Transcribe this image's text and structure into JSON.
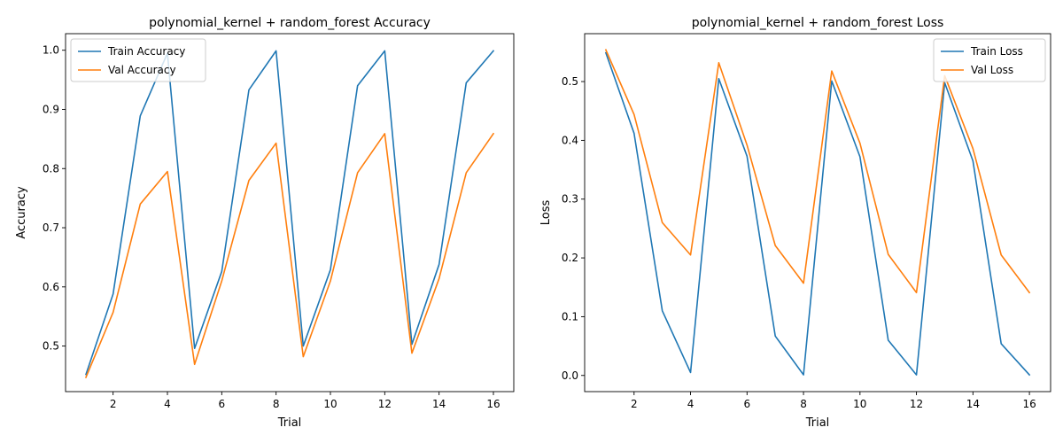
{
  "chart_data": [
    {
      "type": "line",
      "title": "polynomial_kernel + random_forest Accuracy",
      "xlabel": "Trial",
      "ylabel": "Accuracy",
      "xlim": [
        0.25,
        16.75
      ],
      "ylim": [
        0.423,
        1.028
      ],
      "xticks": [
        2,
        4,
        6,
        8,
        10,
        12,
        14,
        16
      ],
      "yticks": [
        0.5,
        0.6,
        0.7,
        0.8,
        0.9,
        1.0
      ],
      "ytick_labels": [
        "0.5",
        "0.6",
        "0.7",
        "0.8",
        "0.9",
        "1.0"
      ],
      "legend": "upper-left",
      "grid": false,
      "x": [
        1,
        2,
        3,
        4,
        5,
        6,
        7,
        8,
        9,
        10,
        11,
        12,
        13,
        14,
        15,
        16
      ],
      "series": [
        {
          "name": "Train Accuracy",
          "color": "#1f77b4",
          "values": [
            0.452,
            0.588,
            0.889,
            0.995,
            0.496,
            0.626,
            0.933,
            0.999,
            0.5,
            0.629,
            0.94,
            0.999,
            0.503,
            0.638,
            0.945,
            0.999
          ]
        },
        {
          "name": "Val Accuracy",
          "color": "#ff7f0e",
          "values": [
            0.447,
            0.557,
            0.74,
            0.795,
            0.469,
            0.61,
            0.78,
            0.843,
            0.482,
            0.61,
            0.793,
            0.859,
            0.488,
            0.614,
            0.793,
            0.859
          ]
        }
      ]
    },
    {
      "type": "line",
      "title": "polynomial_kernel + random_forest Loss",
      "xlabel": "Trial",
      "ylabel": "Loss",
      "xlim": [
        0.25,
        16.75
      ],
      "ylim": [
        -0.0275,
        0.5815
      ],
      "xticks": [
        2,
        4,
        6,
        8,
        10,
        12,
        14,
        16
      ],
      "yticks": [
        0.0,
        0.1,
        0.2,
        0.3,
        0.4,
        0.5
      ],
      "ytick_labels": [
        "0.0",
        "0.1",
        "0.2",
        "0.3",
        "0.4",
        "0.5"
      ],
      "legend": "upper-right",
      "grid": false,
      "x": [
        1,
        2,
        3,
        4,
        5,
        6,
        7,
        8,
        9,
        10,
        11,
        12,
        13,
        14,
        15,
        16
      ],
      "series": [
        {
          "name": "Train Loss",
          "color": "#1f77b4",
          "values": [
            0.549,
            0.412,
            0.11,
            0.005,
            0.505,
            0.373,
            0.067,
            0.001,
            0.501,
            0.372,
            0.06,
            0.001,
            0.498,
            0.365,
            0.054,
            0.001
          ]
        },
        {
          "name": "Val Loss",
          "color": "#ff7f0e",
          "values": [
            0.554,
            0.444,
            0.26,
            0.205,
            0.532,
            0.392,
            0.221,
            0.157,
            0.518,
            0.395,
            0.206,
            0.141,
            0.51,
            0.386,
            0.205,
            0.141
          ]
        }
      ]
    }
  ]
}
